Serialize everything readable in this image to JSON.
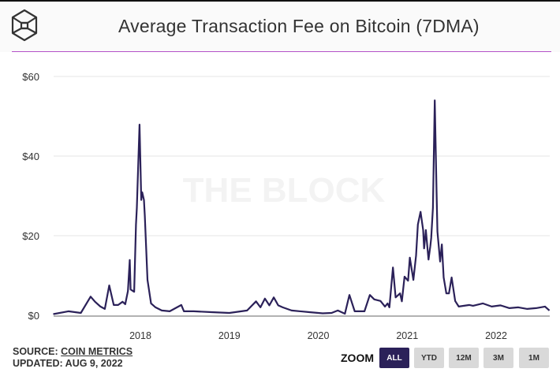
{
  "header": {
    "title": "Average Transaction Fee on Bitcoin (7DMA)",
    "logo_icon": "the-block-cube-icon"
  },
  "watermark": "THE BLOCK",
  "footer": {
    "source_label": "SOURCE:",
    "source_link": "COIN METRICS",
    "updated": "UPDATED: AUG 9, 2022"
  },
  "zoom": {
    "label": "ZOOM",
    "buttons": [
      "ALL",
      "YTD",
      "12M",
      "3M",
      "1M"
    ],
    "active": "ALL"
  },
  "colors": {
    "line": "#2b2159",
    "accent_rule": "#b452c8",
    "active_button": "#2b2159"
  },
  "chart_data": {
    "type": "line",
    "title": "Average Transaction Fee on Bitcoin (7DMA)",
    "xlabel": "",
    "ylabel": "",
    "x_ticks": [
      "2018",
      "2019",
      "2020",
      "2021",
      "2022"
    ],
    "y_ticks": [
      "$0",
      "$20",
      "$40",
      "$60"
    ],
    "ylim": [
      0,
      60
    ],
    "xlim": [
      2017.02,
      2022.6
    ],
    "grid": true,
    "series": [
      {
        "points": [
          [
            2017.02,
            0.3
          ],
          [
            2017.19,
            1.0
          ],
          [
            2017.33,
            0.6
          ],
          [
            2017.44,
            4.7
          ],
          [
            2017.49,
            3.4
          ],
          [
            2017.55,
            2.2
          ],
          [
            2017.6,
            1.6
          ],
          [
            2017.65,
            7.5
          ],
          [
            2017.7,
            2.6
          ],
          [
            2017.75,
            2.6
          ],
          [
            2017.8,
            3.4
          ],
          [
            2017.83,
            2.8
          ],
          [
            2017.86,
            6.1
          ],
          [
            2017.88,
            13.9
          ],
          [
            2017.89,
            6.5
          ],
          [
            2017.93,
            5.9
          ],
          [
            2017.95,
            22.8
          ],
          [
            2017.96,
            27
          ],
          [
            2017.99,
            47.9
          ],
          [
            2018.01,
            29
          ],
          [
            2018.02,
            30.9
          ],
          [
            2018.04,
            29
          ],
          [
            2018.05,
            25
          ],
          [
            2018.08,
            8.9
          ],
          [
            2018.12,
            3.0
          ],
          [
            2018.17,
            2.0
          ],
          [
            2018.24,
            1.2
          ],
          [
            2018.33,
            1.0
          ],
          [
            2018.46,
            2.6
          ],
          [
            2018.49,
            1.0
          ],
          [
            2018.6,
            1.0
          ],
          [
            2018.8,
            0.8
          ],
          [
            2019.0,
            0.6
          ],
          [
            2019.2,
            1.2
          ],
          [
            2019.3,
            3.5
          ],
          [
            2019.35,
            2.0
          ],
          [
            2019.4,
            4.2
          ],
          [
            2019.45,
            2.5
          ],
          [
            2019.5,
            4.5
          ],
          [
            2019.55,
            2.5
          ],
          [
            2019.6,
            2.0
          ],
          [
            2019.7,
            1.2
          ],
          [
            2019.9,
            0.8
          ],
          [
            2020.05,
            0.5
          ],
          [
            2020.15,
            0.6
          ],
          [
            2020.22,
            1.2
          ],
          [
            2020.3,
            0.4
          ],
          [
            2020.35,
            5.1
          ],
          [
            2020.41,
            1.0
          ],
          [
            2020.52,
            1.0
          ],
          [
            2020.58,
            5.1
          ],
          [
            2020.63,
            4.0
          ],
          [
            2020.7,
            3.6
          ],
          [
            2020.75,
            2.2
          ],
          [
            2020.78,
            3.0
          ],
          [
            2020.8,
            2.0
          ],
          [
            2020.84,
            12
          ],
          [
            2020.87,
            4.5
          ],
          [
            2020.92,
            5.5
          ],
          [
            2020.94,
            3.5
          ],
          [
            2020.97,
            9.7
          ],
          [
            2021.01,
            8.7
          ],
          [
            2021.03,
            14.5
          ],
          [
            2021.07,
            8.9
          ],
          [
            2021.1,
            15
          ],
          [
            2021.12,
            22.8
          ],
          [
            2021.15,
            26
          ],
          [
            2021.18,
            21.4
          ],
          [
            2021.19,
            16.8
          ],
          [
            2021.21,
            21.4
          ],
          [
            2021.24,
            14
          ],
          [
            2021.26,
            17.4
          ],
          [
            2021.27,
            19.4
          ],
          [
            2021.29,
            27
          ],
          [
            2021.31,
            54
          ],
          [
            2021.33,
            31
          ],
          [
            2021.34,
            21
          ],
          [
            2021.37,
            13.5
          ],
          [
            2021.39,
            17.8
          ],
          [
            2021.41,
            9.5
          ],
          [
            2021.44,
            5.5
          ],
          [
            2021.47,
            5.5
          ],
          [
            2021.5,
            9.5
          ],
          [
            2021.54,
            3.6
          ],
          [
            2021.58,
            2.2
          ],
          [
            2021.7,
            2.6
          ],
          [
            2021.74,
            2.4
          ],
          [
            2021.85,
            3.0
          ],
          [
            2021.95,
            2.2
          ],
          [
            2022.05,
            2.5
          ],
          [
            2022.15,
            1.8
          ],
          [
            2022.25,
            2.0
          ],
          [
            2022.35,
            1.6
          ],
          [
            2022.45,
            1.8
          ],
          [
            2022.55,
            2.2
          ],
          [
            2022.6,
            1.2
          ]
        ]
      }
    ]
  }
}
